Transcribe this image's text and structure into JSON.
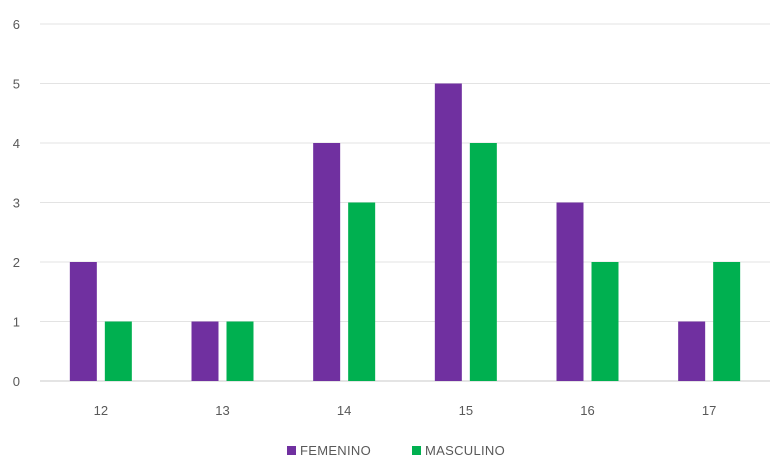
{
  "chart_data": {
    "type": "bar",
    "categories": [
      "12",
      "13",
      "14",
      "15",
      "16",
      "17"
    ],
    "series": [
      {
        "name": "FEMENINO",
        "values": [
          2,
          1,
          4,
          5,
          3,
          1
        ],
        "color": "#7030A0"
      },
      {
        "name": "MASCULINO",
        "values": [
          1,
          1,
          3,
          4,
          2,
          2
        ],
        "color": "#00B050"
      }
    ],
    "title": "",
    "xlabel": "",
    "ylabel": "",
    "ylim": [
      0,
      6
    ],
    "yticks": [
      "0",
      "1",
      "2",
      "3",
      "4",
      "5",
      "6"
    ],
    "grid": true,
    "legend_position": "bottom"
  }
}
